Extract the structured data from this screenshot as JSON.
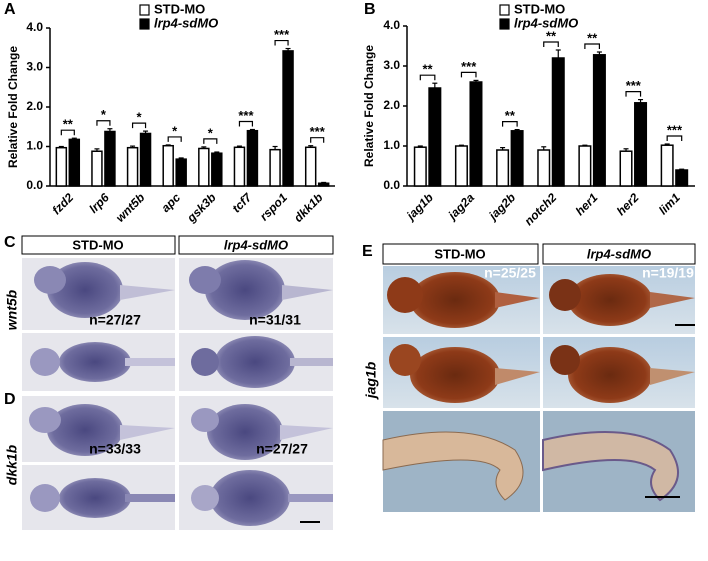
{
  "chart_data": [
    {
      "type": "bar",
      "y_label": "Relative Fold Change",
      "categories": [
        "fzd2",
        "lrp6",
        "wnt5b",
        "apc",
        "gsk3b",
        "tcf7",
        "rspo1",
        "dkk1b"
      ],
      "series": [
        {
          "name": "STD-MO",
          "color": "#ffffff",
          "values": [
            0.97,
            0.88,
            0.97,
            1.02,
            0.95,
            0.98,
            0.92,
            0.98
          ],
          "errors": [
            0.03,
            0.06,
            0.04,
            0.02,
            0.04,
            0.03,
            0.08,
            0.04
          ]
        },
        {
          "name": "lrp4-sdMO",
          "color": "#000000",
          "values": [
            1.18,
            1.38,
            1.33,
            0.68,
            0.83,
            1.4,
            3.42,
            0.07
          ],
          "errors": [
            0.03,
            0.07,
            0.06,
            0.03,
            0.03,
            0.03,
            0.06,
            0.02
          ]
        }
      ],
      "significance": [
        "**",
        "*",
        "*",
        "*",
        "*",
        "***",
        "***",
        "***"
      ],
      "ylim": [
        0,
        4
      ],
      "yticks": [
        {
          "value": 0,
          "label": "0.0"
        },
        {
          "value": 1,
          "label": "1.0"
        },
        {
          "value": 2,
          "label": "2.0"
        },
        {
          "value": 3,
          "label": "3.0"
        },
        {
          "value": 4,
          "label": "4.0"
        }
      ],
      "legend": "top"
    },
    {
      "type": "bar",
      "y_label": "Relative Fold Change",
      "categories": [
        "jag1b",
        "jag2a",
        "jag2b",
        "notch2",
        "her1",
        "her2",
        "lim1"
      ],
      "series": [
        {
          "name": "STD-MO",
          "color": "#ffffff",
          "values": [
            0.97,
            1.0,
            0.9,
            0.9,
            1.0,
            0.87,
            1.02
          ],
          "errors": [
            0.03,
            0.02,
            0.06,
            0.08,
            0.02,
            0.06,
            0.03
          ]
        },
        {
          "name": "lrp4-sdMO",
          "color": "#000000",
          "values": [
            2.45,
            2.6,
            1.38,
            3.2,
            3.28,
            2.08,
            0.4
          ],
          "errors": [
            0.12,
            0.04,
            0.03,
            0.2,
            0.07,
            0.08,
            0.02
          ]
        }
      ],
      "significance": [
        "**",
        "***",
        "**",
        "**",
        "**",
        "***",
        "***"
      ],
      "ylim": [
        0,
        4
      ],
      "yticks": [
        {
          "value": 0,
          "label": "0.0"
        },
        {
          "value": 1,
          "label": "1.0"
        },
        {
          "value": 2,
          "label": "2.0"
        },
        {
          "value": 3,
          "label": "3.0"
        },
        {
          "value": 4,
          "label": "4.0"
        }
      ],
      "legend": "top"
    }
  ],
  "panels": {
    "labels": [
      "A",
      "B",
      "C",
      "D",
      "E"
    ],
    "C": {
      "headers": [
        "STD-MO",
        "lrp4-sdMO"
      ],
      "genes": [
        "wnt5b",
        "dkk1b"
      ],
      "counts": [
        [
          "n=27/27",
          "n=31/31"
        ],
        [
          "n=33/33",
          "n=27/27"
        ]
      ]
    },
    "E": {
      "headers": [
        "STD-MO",
        "lrp4-sdMO"
      ],
      "gene": "jag1b",
      "counts": [
        "n=25/25",
        "n=19/19"
      ]
    }
  }
}
